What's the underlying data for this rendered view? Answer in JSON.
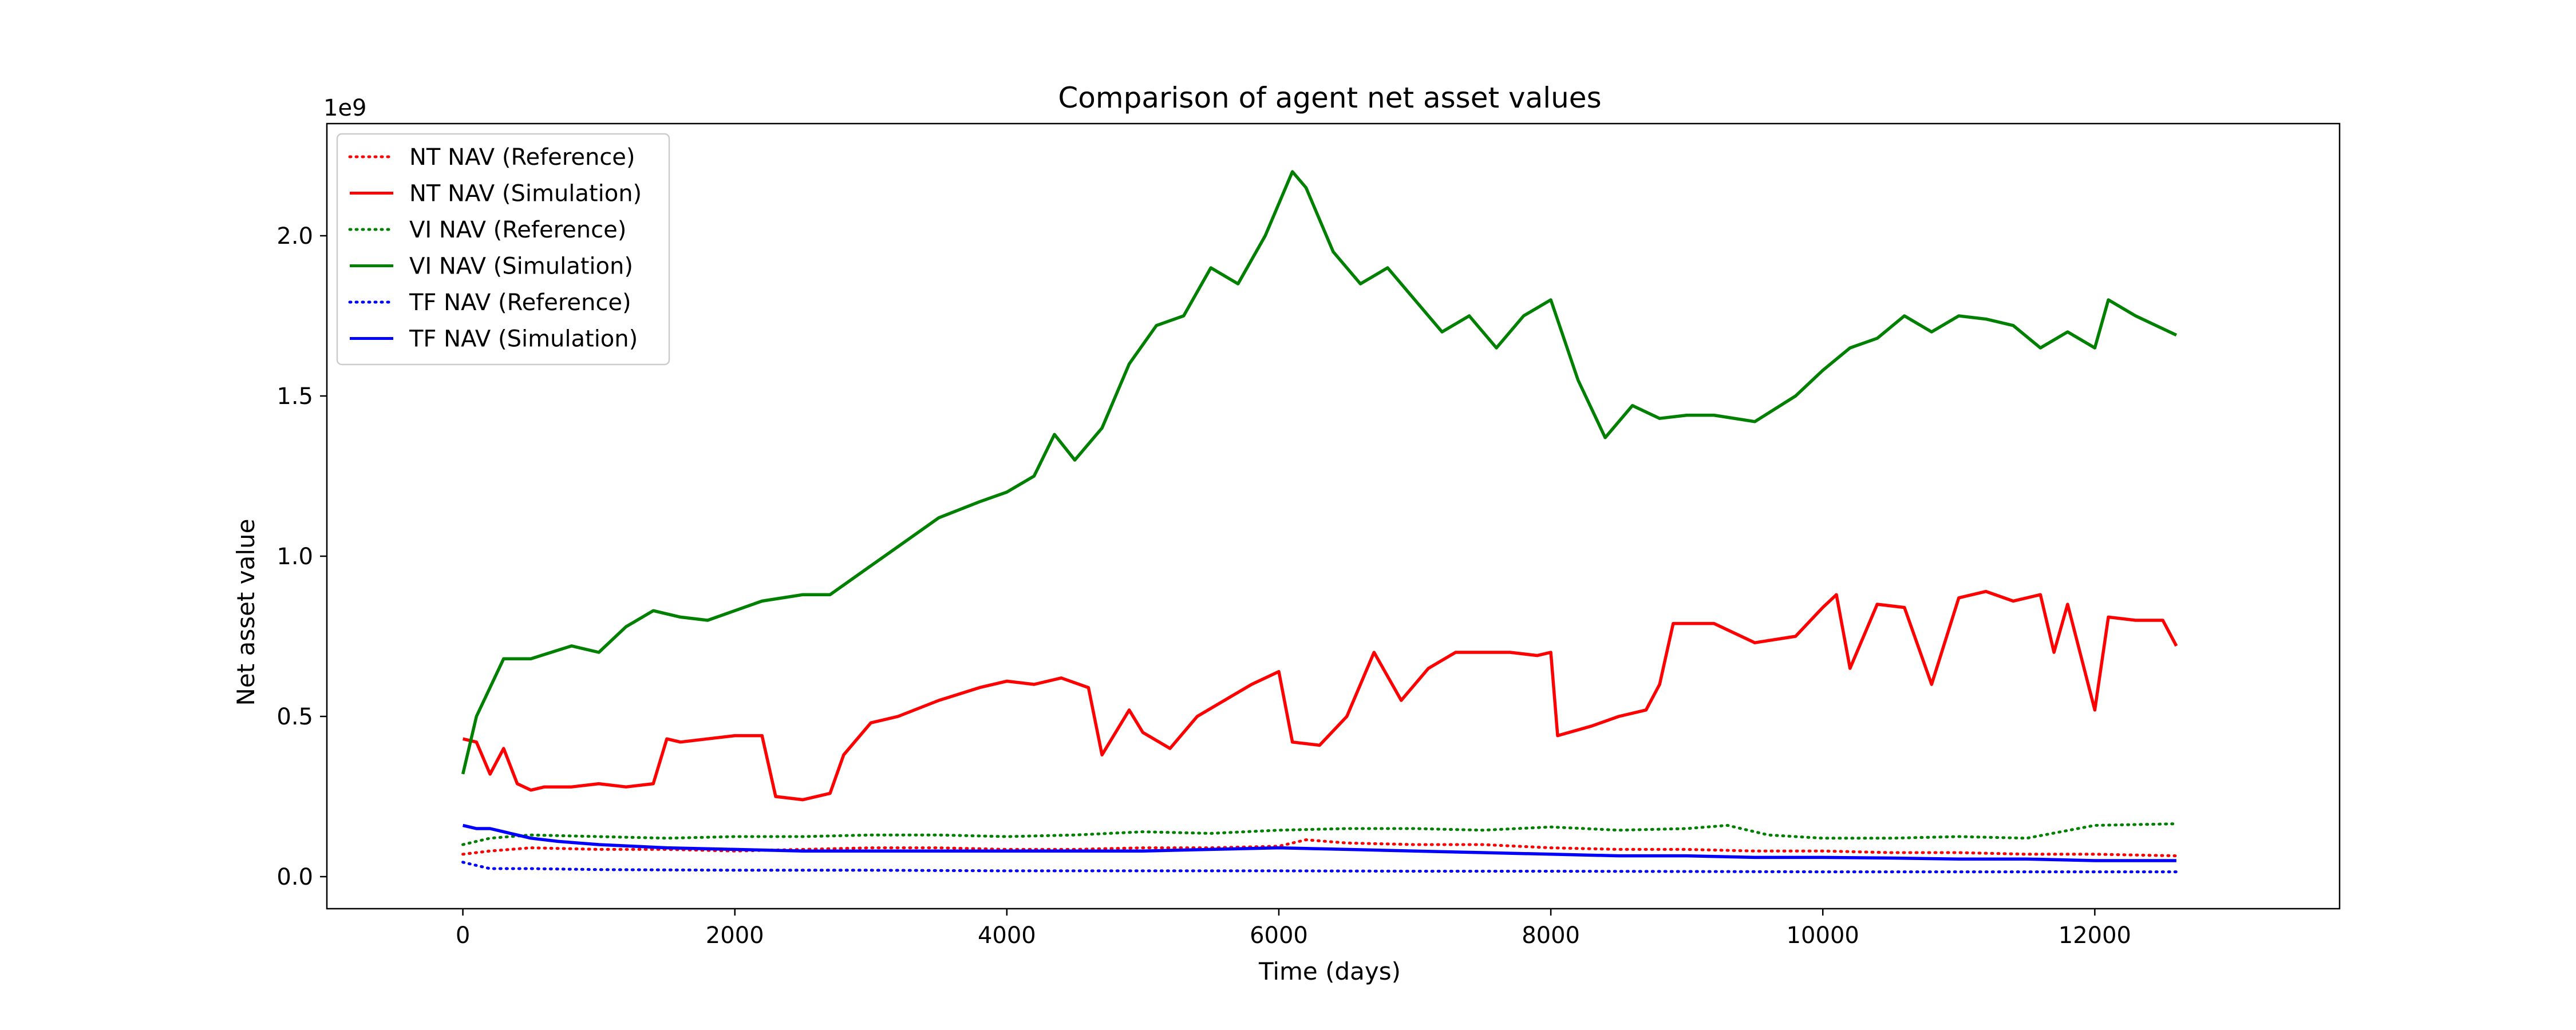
{
  "chart_data": {
    "type": "line",
    "title": "Comparison of agent net asset values",
    "xlabel": "Time (days)",
    "ylabel": "Net asset value",
    "y_offset_label": "1e9",
    "xlim": [
      -1000,
      13800
    ],
    "ylim": [
      -0.1,
      2.35
    ],
    "x_ticks": [
      0,
      2000,
      4000,
      6000,
      8000,
      10000,
      12000
    ],
    "x_tick_labels": [
      "0",
      "2000",
      "4000",
      "6000",
      "8000",
      "10000",
      "12000"
    ],
    "y_ticks": [
      0.0,
      0.5,
      1.0,
      1.5,
      2.0
    ],
    "y_tick_labels": [
      "0.0",
      "0.5",
      "1.0",
      "1.5",
      "2.0"
    ],
    "grid": false,
    "legend_position": "top-left",
    "series": [
      {
        "name": "NT NAV (Reference)",
        "color": "#ff0000",
        "style": "dotted",
        "x": [
          0,
          200,
          500,
          1000,
          1500,
          2000,
          2500,
          3000,
          3500,
          4000,
          4500,
          5000,
          5500,
          6000,
          6200,
          6500,
          7000,
          7500,
          8000,
          8500,
          9000,
          9500,
          10000,
          10500,
          11000,
          11500,
          12000,
          12600
        ],
        "y": [
          0.07,
          0.08,
          0.09,
          0.085,
          0.085,
          0.08,
          0.085,
          0.09,
          0.09,
          0.085,
          0.085,
          0.09,
          0.09,
          0.095,
          0.115,
          0.105,
          0.1,
          0.1,
          0.09,
          0.085,
          0.085,
          0.08,
          0.08,
          0.075,
          0.075,
          0.07,
          0.07,
          0.065
        ]
      },
      {
        "name": "NT NAV (Simulation)",
        "color": "#ff0000",
        "style": "solid",
        "x": [
          0,
          100,
          200,
          300,
          400,
          500,
          600,
          800,
          1000,
          1200,
          1400,
          1500,
          1600,
          1800,
          2000,
          2200,
          2300,
          2500,
          2700,
          2800,
          3000,
          3200,
          3500,
          3800,
          4000,
          4200,
          4400,
          4600,
          4700,
          4900,
          5000,
          5200,
          5400,
          5600,
          5800,
          6000,
          6100,
          6300,
          6500,
          6700,
          6900,
          7100,
          7300,
          7500,
          7700,
          7900,
          8000,
          8050,
          8300,
          8500,
          8700,
          8800,
          8900,
          9200,
          9500,
          9800,
          10000,
          10100,
          10200,
          10400,
          10600,
          10800,
          11000,
          11200,
          11400,
          11600,
          11700,
          11800,
          12000,
          12100,
          12300,
          12500,
          12600
        ],
        "y": [
          0.43,
          0.42,
          0.32,
          0.4,
          0.29,
          0.27,
          0.28,
          0.28,
          0.29,
          0.28,
          0.29,
          0.43,
          0.42,
          0.43,
          0.44,
          0.44,
          0.25,
          0.24,
          0.26,
          0.38,
          0.48,
          0.5,
          0.55,
          0.59,
          0.61,
          0.6,
          0.62,
          0.59,
          0.38,
          0.52,
          0.45,
          0.4,
          0.5,
          0.55,
          0.6,
          0.64,
          0.42,
          0.41,
          0.5,
          0.7,
          0.55,
          0.65,
          0.7,
          0.7,
          0.7,
          0.69,
          0.7,
          0.44,
          0.47,
          0.5,
          0.52,
          0.6,
          0.79,
          0.79,
          0.73,
          0.75,
          0.84,
          0.88,
          0.65,
          0.85,
          0.84,
          0.6,
          0.87,
          0.89,
          0.86,
          0.88,
          0.7,
          0.85,
          0.52,
          0.81,
          0.8,
          0.8,
          0.72
        ]
      },
      {
        "name": "VI NAV (Reference)",
        "color": "#008000",
        "style": "dotted",
        "x": [
          0,
          200,
          500,
          1000,
          1500,
          2000,
          2500,
          3000,
          3500,
          4000,
          4500,
          5000,
          5500,
          6000,
          6500,
          7000,
          7500,
          8000,
          8500,
          9000,
          9300,
          9600,
          10000,
          10500,
          11000,
          11500,
          12000,
          12600
        ],
        "y": [
          0.1,
          0.12,
          0.13,
          0.125,
          0.12,
          0.125,
          0.125,
          0.13,
          0.13,
          0.125,
          0.13,
          0.14,
          0.135,
          0.145,
          0.15,
          0.15,
          0.145,
          0.155,
          0.145,
          0.15,
          0.16,
          0.13,
          0.12,
          0.12,
          0.125,
          0.12,
          0.16,
          0.165
        ]
      },
      {
        "name": "VI NAV (Simulation)",
        "color": "#008000",
        "style": "solid",
        "x": [
          0,
          100,
          300,
          500,
          800,
          1000,
          1200,
          1400,
          1600,
          1800,
          2000,
          2200,
          2500,
          2700,
          3000,
          3200,
          3500,
          3800,
          4000,
          4200,
          4350,
          4500,
          4700,
          4900,
          5100,
          5300,
          5500,
          5700,
          5900,
          6100,
          6200,
          6400,
          6600,
          6800,
          7000,
          7200,
          7400,
          7600,
          7800,
          8000,
          8200,
          8400,
          8600,
          8800,
          9000,
          9200,
          9500,
          9800,
          10000,
          10200,
          10400,
          10600,
          10800,
          11000,
          11200,
          11400,
          11600,
          11800,
          12000,
          12100,
          12300,
          12600
        ],
        "y": [
          0.32,
          0.5,
          0.68,
          0.68,
          0.72,
          0.7,
          0.78,
          0.83,
          0.81,
          0.8,
          0.83,
          0.86,
          0.88,
          0.88,
          0.97,
          1.03,
          1.12,
          1.17,
          1.2,
          1.25,
          1.38,
          1.3,
          1.4,
          1.6,
          1.72,
          1.75,
          1.9,
          1.85,
          2.0,
          2.2,
          2.15,
          1.95,
          1.85,
          1.9,
          1.8,
          1.7,
          1.75,
          1.65,
          1.75,
          1.8,
          1.55,
          1.37,
          1.47,
          1.43,
          1.44,
          1.44,
          1.42,
          1.5,
          1.58,
          1.65,
          1.68,
          1.75,
          1.7,
          1.75,
          1.74,
          1.72,
          1.65,
          1.7,
          1.65,
          1.8,
          1.75,
          1.69
        ]
      },
      {
        "name": "TF NAV (Reference)",
        "color": "#0000ff",
        "style": "dotted",
        "x": [
          0,
          100,
          200,
          500,
          1000,
          2000,
          3000,
          4000,
          5000,
          6000,
          7000,
          8000,
          9000,
          10000,
          11000,
          12000,
          12600
        ],
        "y": [
          0.045,
          0.035,
          0.025,
          0.025,
          0.022,
          0.02,
          0.02,
          0.018,
          0.018,
          0.018,
          0.017,
          0.017,
          0.016,
          0.015,
          0.015,
          0.015,
          0.015
        ]
      },
      {
        "name": "TF NAV (Simulation)",
        "color": "#0000ff",
        "style": "solid",
        "x": [
          0,
          100,
          200,
          300,
          400,
          500,
          700,
          1000,
          1500,
          2000,
          2500,
          3000,
          3500,
          4000,
          4500,
          5000,
          5500,
          6000,
          6500,
          7000,
          7500,
          8000,
          8500,
          9000,
          9500,
          10000,
          10500,
          11000,
          11500,
          12000,
          12600
        ],
        "y": [
          0.16,
          0.15,
          0.15,
          0.14,
          0.13,
          0.12,
          0.11,
          0.1,
          0.09,
          0.085,
          0.08,
          0.08,
          0.08,
          0.08,
          0.08,
          0.08,
          0.085,
          0.09,
          0.085,
          0.08,
          0.075,
          0.07,
          0.065,
          0.065,
          0.06,
          0.06,
          0.058,
          0.055,
          0.055,
          0.05,
          0.05
        ]
      }
    ]
  }
}
